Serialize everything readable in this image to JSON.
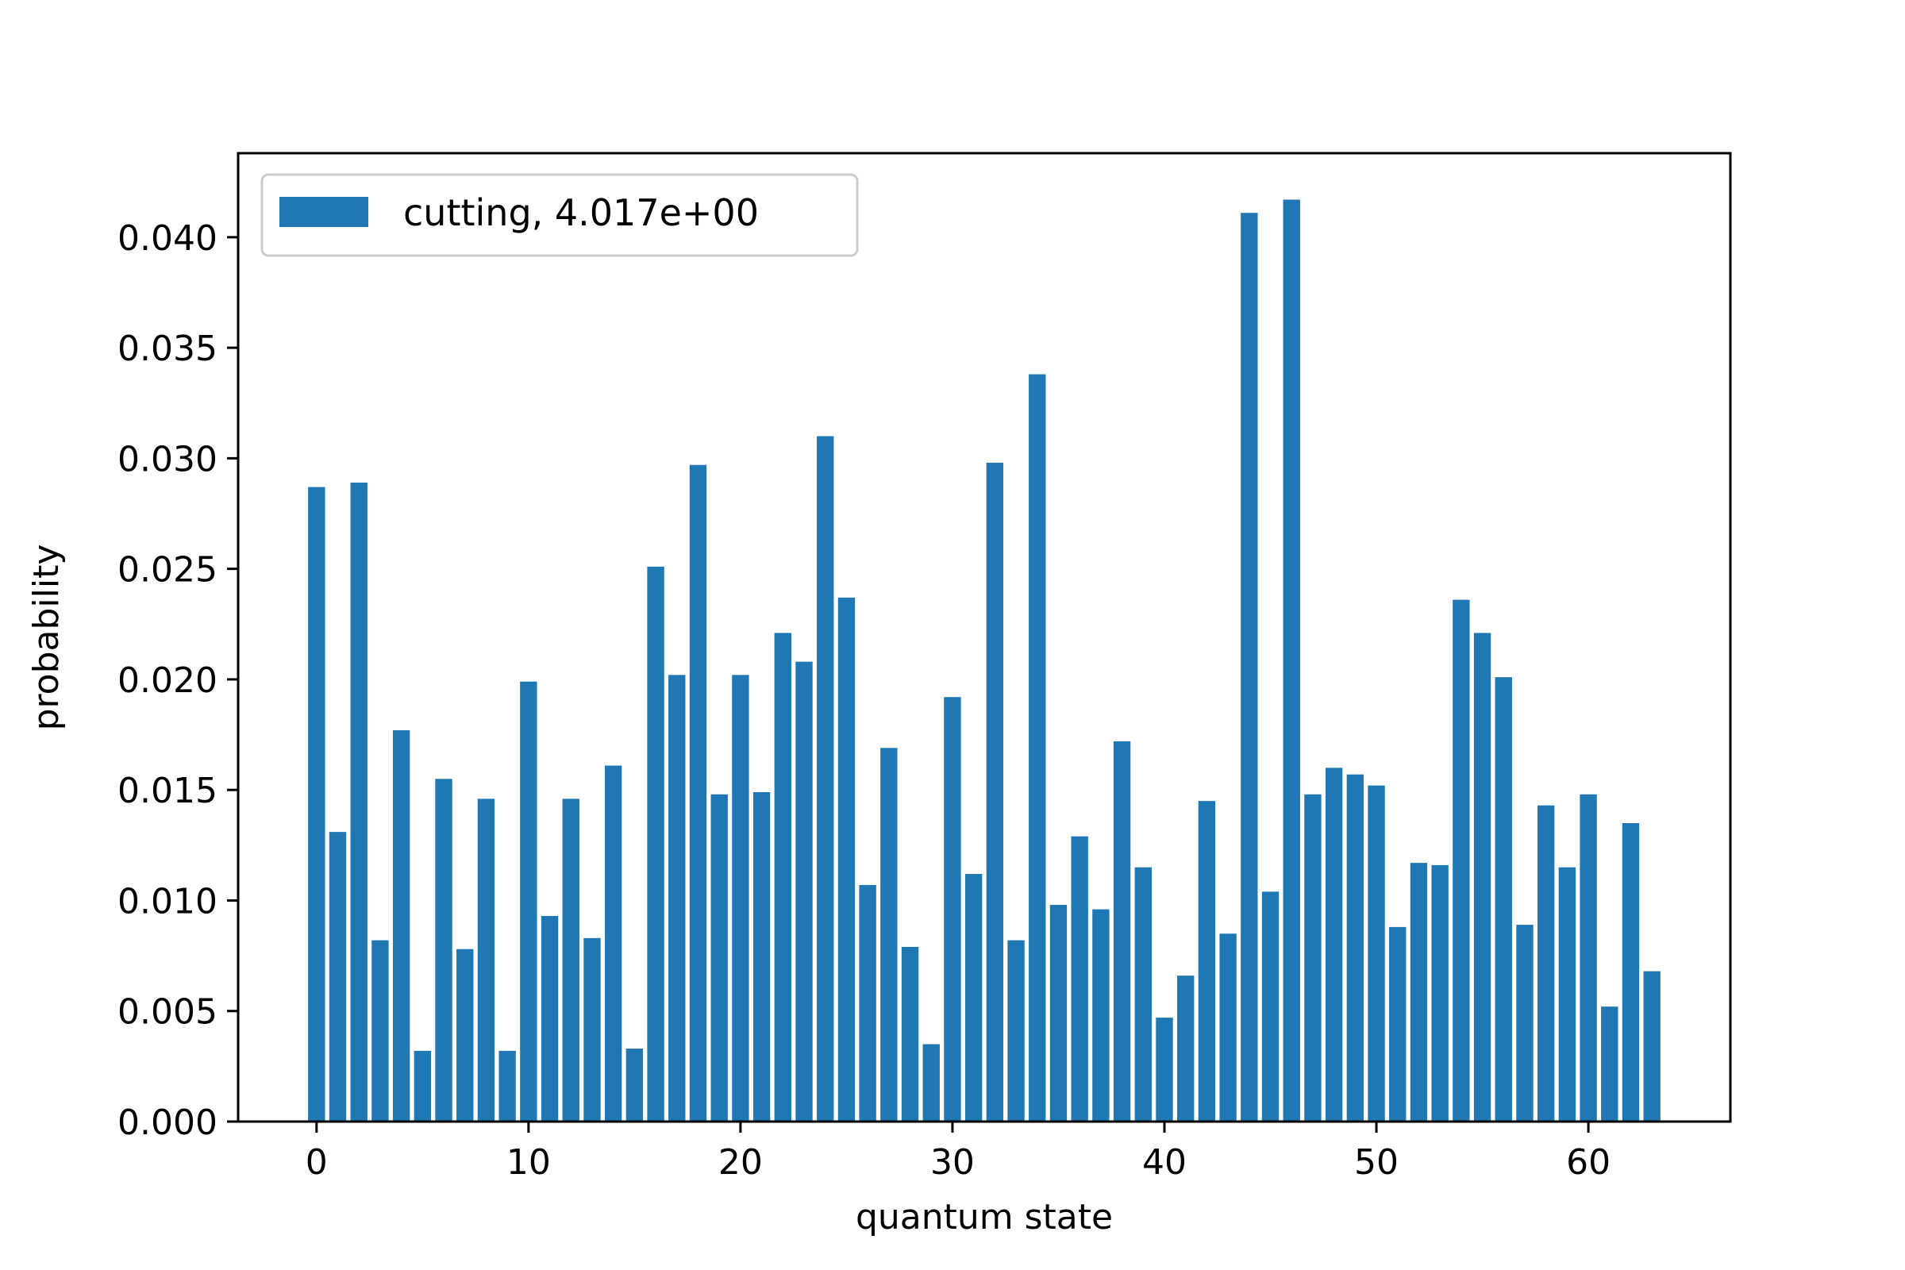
{
  "chart_data": {
    "type": "bar",
    "title": "",
    "xlabel": "quantum state",
    "ylabel": "probability",
    "xlim": [
      -3.7,
      66.7
    ],
    "ylim": [
      0,
      0.0438
    ],
    "xticks": [
      0,
      10,
      20,
      30,
      40,
      50,
      60
    ],
    "yticks": [
      0.0,
      0.005,
      0.01,
      0.015,
      0.02,
      0.025,
      0.03,
      0.035,
      0.04
    ],
    "ytick_labels": [
      "0.000",
      "0.005",
      "0.010",
      "0.015",
      "0.020",
      "0.025",
      "0.030",
      "0.035",
      "0.040"
    ],
    "grid": false,
    "legend_position": "top-left",
    "color": "#1f77b4",
    "series": [
      {
        "name": "cutting, 4.017e+00",
        "x": [
          0,
          1,
          2,
          3,
          4,
          5,
          6,
          7,
          8,
          9,
          10,
          11,
          12,
          13,
          14,
          15,
          16,
          17,
          18,
          19,
          20,
          21,
          22,
          23,
          24,
          25,
          26,
          27,
          28,
          29,
          30,
          31,
          32,
          33,
          34,
          35,
          36,
          37,
          38,
          39,
          40,
          41,
          42,
          43,
          44,
          45,
          46,
          47,
          48,
          49,
          50,
          51,
          52,
          53,
          54,
          55,
          56,
          57,
          58,
          59,
          60,
          61,
          62,
          63
        ],
        "values": [
          0.0287,
          0.0131,
          0.0289,
          0.0082,
          0.0177,
          0.0032,
          0.0155,
          0.0078,
          0.0146,
          0.0032,
          0.0199,
          0.0093,
          0.0146,
          0.0083,
          0.0161,
          0.0033,
          0.0251,
          0.0202,
          0.0297,
          0.0148,
          0.0202,
          0.0149,
          0.0221,
          0.0208,
          0.031,
          0.0237,
          0.0107,
          0.0169,
          0.0079,
          0.0035,
          0.0192,
          0.0112,
          0.0298,
          0.0082,
          0.0338,
          0.0098,
          0.0129,
          0.0096,
          0.0172,
          0.0115,
          0.0047,
          0.0066,
          0.0145,
          0.0085,
          0.0411,
          0.0104,
          0.0417,
          0.0148,
          0.016,
          0.0157,
          0.0152,
          0.0088,
          0.0117,
          0.0116,
          0.0236,
          0.0221,
          0.0201,
          0.0089,
          0.0143,
          0.0115,
          0.0148,
          0.0052,
          0.0135,
          0.0068
        ]
      }
    ]
  }
}
